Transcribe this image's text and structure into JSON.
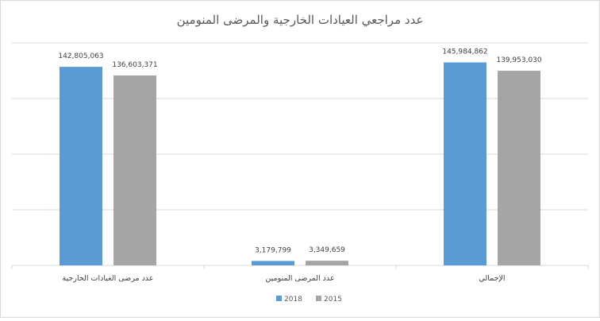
{
  "chart_data": {
    "type": "bar",
    "title": "عدد مراجعي العيادات الخارجية والمرضى المنومين",
    "xlabel": "",
    "ylabel": "",
    "ylim": [
      0,
      160000000
    ],
    "grid": true,
    "legend_position": "bottom",
    "direction": "rtl",
    "categories": [
      "الإجمالي",
      "عدد المرضى المنومين",
      "عدد مرضى العيادات الخارجية"
    ],
    "series": [
      {
        "name": "2018",
        "color": "#5b9bd5",
        "values": [
          145984862,
          3179799,
          142805063
        ],
        "labels": [
          "145,984,862",
          "3,179,799",
          "142,805,063"
        ]
      },
      {
        "name": "2015",
        "color": "#a5a5a5",
        "values": [
          139953030,
          3349659,
          136603371
        ],
        "labels": [
          "139,953,030",
          "3,349,659",
          "136,603,371"
        ]
      }
    ]
  }
}
